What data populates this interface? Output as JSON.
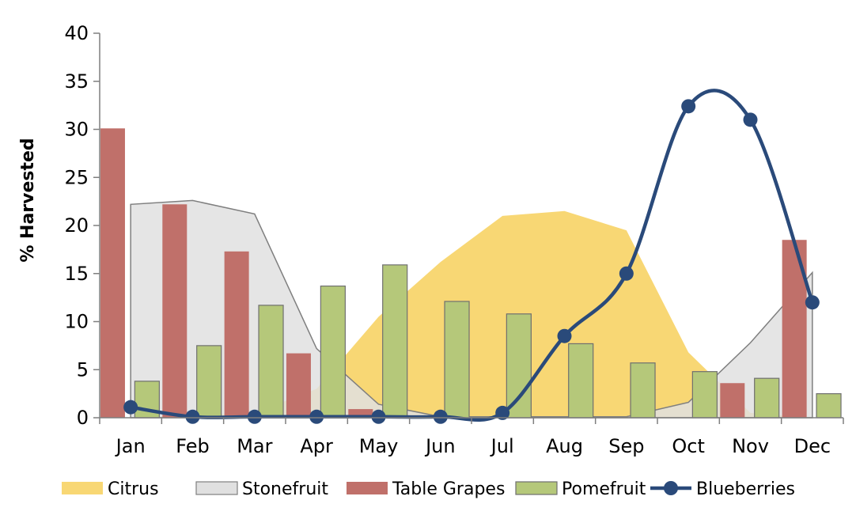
{
  "chart_data": {
    "type": "combo",
    "title": "",
    "xlabel": "",
    "ylabel": "% Harvested",
    "ylim": [
      0,
      40
    ],
    "yticks": [
      0,
      5,
      10,
      15,
      20,
      25,
      30,
      35,
      40
    ],
    "grid": false,
    "legend_position": "bottom",
    "categories": [
      "Jan",
      "Feb",
      "Mar",
      "Apr",
      "May",
      "Jun",
      "Jul",
      "Aug",
      "Sep",
      "Oct",
      "Nov",
      "Dec"
    ],
    "series": [
      {
        "name": "Citrus",
        "kind": "area",
        "color": "#f8d774",
        "values": [
          0,
          0.3,
          0.5,
          3.0,
          10.5,
          16.2,
          21.0,
          21.5,
          19.5,
          6.8,
          0.5,
          0
        ]
      },
      {
        "name": "Stonefruit",
        "kind": "area",
        "color": "#e0e0e0",
        "stroke": "#7f7f7f",
        "values": [
          22.2,
          22.6,
          21.2,
          7.2,
          1.4,
          0.1,
          0.1,
          0.1,
          0.1,
          1.6,
          7.8,
          15.1
        ]
      },
      {
        "name": "Table Grapes",
        "kind": "bar",
        "color": "#c0706a",
        "values": [
          30.1,
          22.2,
          17.3,
          6.7,
          0.9,
          0,
          0,
          0,
          0,
          0,
          3.6,
          18.5
        ]
      },
      {
        "name": "Pomefruit",
        "kind": "bar",
        "color": "#b5c87a",
        "stroke": "#6f6f6f",
        "values": [
          3.8,
          7.5,
          11.7,
          13.7,
          15.9,
          12.1,
          10.8,
          7.7,
          5.7,
          4.8,
          4.1,
          2.5
        ]
      },
      {
        "name": "Blueberries",
        "kind": "line",
        "color": "#2a4a7a",
        "values": [
          1.1,
          0.1,
          0.1,
          0.1,
          0.1,
          0.1,
          0.5,
          8.5,
          15.0,
          32.4,
          31.0,
          12.0
        ]
      }
    ]
  }
}
